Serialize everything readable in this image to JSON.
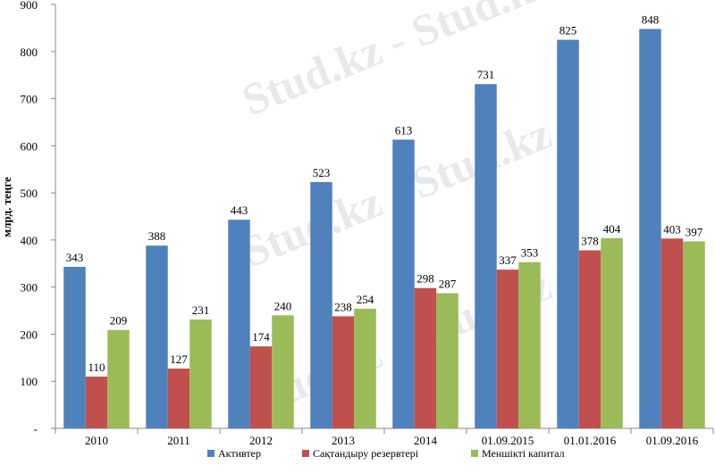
{
  "chart_data": {
    "type": "bar",
    "title": "",
    "xlabel": "",
    "ylabel": "млрд. теңге",
    "ylim": [
      0,
      900
    ],
    "y_ticks": [
      "-",
      "100",
      "200",
      "300",
      "400",
      "500",
      "600",
      "700",
      "800",
      "900"
    ],
    "grid": false,
    "legend_position": "bottom",
    "categories": [
      "2010",
      "2011",
      "2012",
      "2013",
      "2014",
      "01.09.2015",
      "01.01.2016",
      "01.09.2016"
    ],
    "series": [
      {
        "name": "Активтер",
        "color": "#4f81bd",
        "values": [
          343,
          388,
          443,
          523,
          613,
          731,
          825,
          848
        ]
      },
      {
        "name": "Сақтандыру резервтері",
        "color": "#c0504d",
        "values": [
          110,
          127,
          174,
          238,
          298,
          337,
          378,
          403
        ]
      },
      {
        "name": "Меншікті капитал",
        "color": "#9bbb59",
        "values": [
          209,
          231,
          240,
          254,
          287,
          353,
          404,
          397
        ]
      }
    ]
  },
  "watermark": {
    "text": "Stud.kz - Stud.kz"
  }
}
